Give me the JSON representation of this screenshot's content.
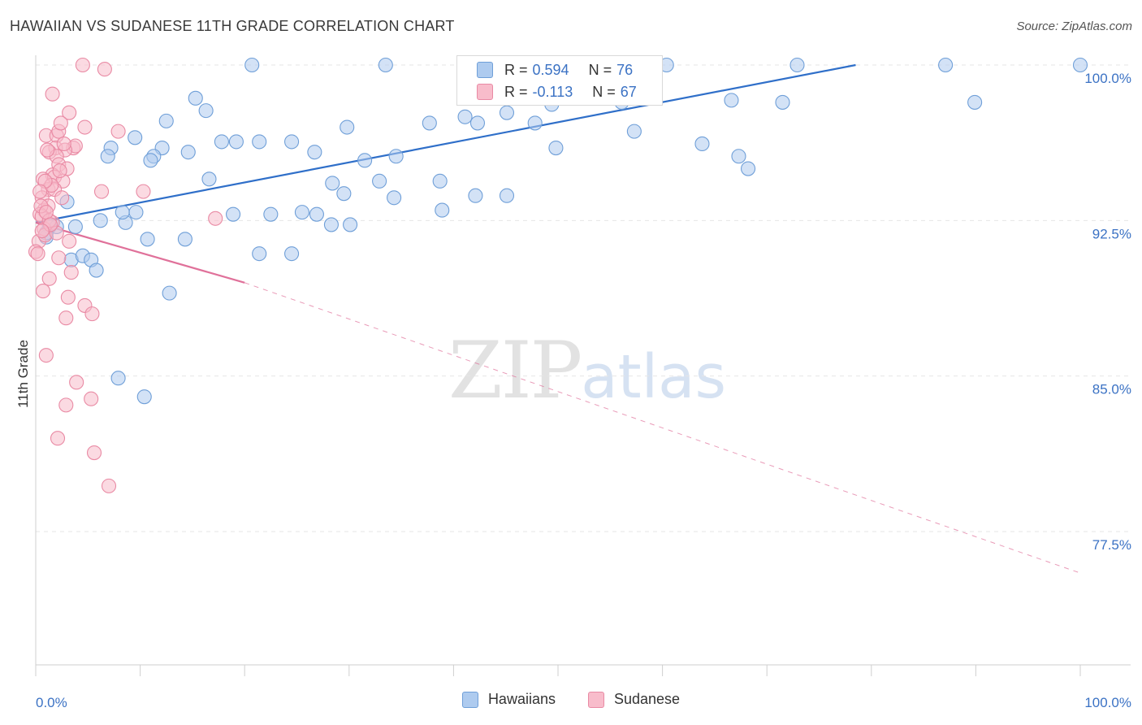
{
  "title": "HAWAIIAN VS SUDANESE 11TH GRADE CORRELATION CHART",
  "source": "Source: ZipAtlas.com",
  "watermark": {
    "zip": "ZIP",
    "atlas": "atlas"
  },
  "legend": {
    "r_label": "R =",
    "n_label": "N =",
    "rows": [
      {
        "name": "Hawaiians",
        "r": "0.594",
        "n": "76",
        "color": "#aecbef",
        "stroke": "#6f9fd8"
      },
      {
        "name": "Sudanese",
        "r": "-0.113",
        "n": "67",
        "color": "#f8bccb",
        "stroke": "#e98aa4"
      }
    ]
  },
  "chart_data": {
    "type": "scatter",
    "title": "HAWAIIAN VS SUDANESE 11TH GRADE CORRELATION CHART",
    "xlabel": "",
    "ylabel": "11th Grade",
    "xlim": [
      0,
      100
    ],
    "ylim": [
      70,
      100.5
    ],
    "x_tick_labels": [
      "0.0%",
      "100.0%"
    ],
    "y_ticks": [
      77.5,
      85.0,
      92.5,
      100.0
    ],
    "y_tick_labels": [
      "77.5%",
      "85.0%",
      "92.5%",
      "100.0%"
    ],
    "grid": true,
    "legend_position": "top-center",
    "series": [
      {
        "name": "Hawaiians",
        "color": "#6f9fd8",
        "fill": "#aecbef",
        "trend": {
          "x": [
            0,
            78.5
          ],
          "y": [
            92.4,
            100.0
          ],
          "style": "solid",
          "color": "#2f6fc9"
        },
        "points": [
          [
            20.7,
            100.0
          ],
          [
            33.5,
            100.0
          ],
          [
            50.3,
            100.0
          ],
          [
            60.4,
            100.0
          ],
          [
            72.9,
            100.0
          ],
          [
            87.1,
            100.0
          ],
          [
            100.0,
            100.0
          ],
          [
            15.3,
            98.4
          ],
          [
            16.3,
            97.8
          ],
          [
            12.5,
            97.3
          ],
          [
            29.8,
            97.0
          ],
          [
            45.1,
            97.7
          ],
          [
            42.3,
            97.2
          ],
          [
            41.1,
            97.5
          ],
          [
            37.7,
            97.2
          ],
          [
            47.8,
            97.2
          ],
          [
            49.4,
            98.1
          ],
          [
            56.1,
            98.2
          ],
          [
            66.6,
            98.3
          ],
          [
            57.3,
            96.8
          ],
          [
            63.8,
            96.2
          ],
          [
            71.5,
            98.2
          ],
          [
            89.9,
            98.2
          ],
          [
            9.5,
            96.5
          ],
          [
            7.2,
            96.0
          ],
          [
            6.9,
            95.6
          ],
          [
            12.1,
            96.0
          ],
          [
            11.3,
            95.6
          ],
          [
            14.6,
            95.8
          ],
          [
            17.8,
            96.3
          ],
          [
            19.2,
            96.3
          ],
          [
            21.4,
            96.3
          ],
          [
            24.5,
            96.3
          ],
          [
            26.7,
            95.8
          ],
          [
            31.5,
            95.4
          ],
          [
            34.5,
            95.6
          ],
          [
            11.0,
            95.4
          ],
          [
            49.8,
            96.0
          ],
          [
            67.3,
            95.6
          ],
          [
            68.2,
            95.0
          ],
          [
            16.6,
            94.5
          ],
          [
            28.4,
            94.3
          ],
          [
            32.9,
            94.4
          ],
          [
            38.7,
            94.4
          ],
          [
            29.5,
            93.8
          ],
          [
            34.3,
            93.6
          ],
          [
            42.1,
            93.7
          ],
          [
            45.1,
            93.7
          ],
          [
            3.0,
            93.4
          ],
          [
            6.2,
            92.5
          ],
          [
            8.6,
            92.4
          ],
          [
            8.3,
            92.9
          ],
          [
            9.6,
            92.9
          ],
          [
            18.9,
            92.8
          ],
          [
            22.5,
            92.8
          ],
          [
            25.5,
            92.9
          ],
          [
            28.3,
            92.3
          ],
          [
            38.9,
            93.0
          ],
          [
            1.3,
            92.2
          ],
          [
            1.0,
            91.7
          ],
          [
            3.8,
            92.2
          ],
          [
            10.7,
            91.6
          ],
          [
            14.3,
            91.6
          ],
          [
            21.4,
            90.9
          ],
          [
            24.5,
            90.9
          ],
          [
            3.4,
            90.6
          ],
          [
            4.5,
            90.8
          ],
          [
            5.3,
            90.6
          ],
          [
            5.8,
            90.1
          ],
          [
            12.8,
            89.0
          ],
          [
            7.9,
            84.9
          ],
          [
            10.4,
            84.0
          ],
          [
            1.0,
            91.9
          ],
          [
            2.0,
            92.2
          ],
          [
            26.9,
            92.8
          ],
          [
            30.1,
            92.3
          ]
        ]
      },
      {
        "name": "Sudanese",
        "color": "#e98aa4",
        "fill": "#f8bccb",
        "trend": {
          "x": [
            0,
            20
          ],
          "y": [
            92.4,
            89.5
          ],
          "style": "solid",
          "color": "#e0719a",
          "extension": {
            "x": [
              20,
              100
            ],
            "y": [
              89.5,
              75.5
            ],
            "style": "dashed"
          }
        },
        "points": [
          [
            4.5,
            100.0
          ],
          [
            6.6,
            99.8
          ],
          [
            1.6,
            98.6
          ],
          [
            3.2,
            97.7
          ],
          [
            4.7,
            97.0
          ],
          [
            7.9,
            96.8
          ],
          [
            1.0,
            96.6
          ],
          [
            2.0,
            96.6
          ],
          [
            2.2,
            96.8
          ],
          [
            2.4,
            97.2
          ],
          [
            1.9,
            96.0
          ],
          [
            3.6,
            96.0
          ],
          [
            3.8,
            96.1
          ],
          [
            1.3,
            95.8
          ],
          [
            2.8,
            95.9
          ],
          [
            2.0,
            95.6
          ],
          [
            2.2,
            95.2
          ],
          [
            3.0,
            95.0
          ],
          [
            1.6,
            94.7
          ],
          [
            0.7,
            94.5
          ],
          [
            1.8,
            94.6
          ],
          [
            2.6,
            94.4
          ],
          [
            1.2,
            94.0
          ],
          [
            1.8,
            94.0
          ],
          [
            0.6,
            93.6
          ],
          [
            2.5,
            93.6
          ],
          [
            6.3,
            93.9
          ],
          [
            10.3,
            93.9
          ],
          [
            0.8,
            93.0
          ],
          [
            1.2,
            93.2
          ],
          [
            0.4,
            92.8
          ],
          [
            0.6,
            92.7
          ],
          [
            1.6,
            92.4
          ],
          [
            0.8,
            92.1
          ],
          [
            1.3,
            92.5
          ],
          [
            17.2,
            92.6
          ],
          [
            0.3,
            91.5
          ],
          [
            0.9,
            91.8
          ],
          [
            3.2,
            91.5
          ],
          [
            0.0,
            91.0
          ],
          [
            2.2,
            90.7
          ],
          [
            3.4,
            90.0
          ],
          [
            1.3,
            89.7
          ],
          [
            0.7,
            89.1
          ],
          [
            3.1,
            88.8
          ],
          [
            4.7,
            88.4
          ],
          [
            5.4,
            88.0
          ],
          [
            2.9,
            87.8
          ],
          [
            1.0,
            86.0
          ],
          [
            3.9,
            84.7
          ],
          [
            5.3,
            83.9
          ],
          [
            2.9,
            83.6
          ],
          [
            2.1,
            82.0
          ],
          [
            5.6,
            81.3
          ],
          [
            7.0,
            79.7
          ],
          [
            0.5,
            93.2
          ],
          [
            1.0,
            92.9
          ],
          [
            1.5,
            94.2
          ],
          [
            2.0,
            91.9
          ],
          [
            0.2,
            90.9
          ],
          [
            1.1,
            95.9
          ],
          [
            2.7,
            96.2
          ],
          [
            0.9,
            94.4
          ],
          [
            0.4,
            93.9
          ],
          [
            1.4,
            92.3
          ],
          [
            2.3,
            94.9
          ],
          [
            0.6,
            92.0
          ]
        ]
      }
    ]
  }
}
